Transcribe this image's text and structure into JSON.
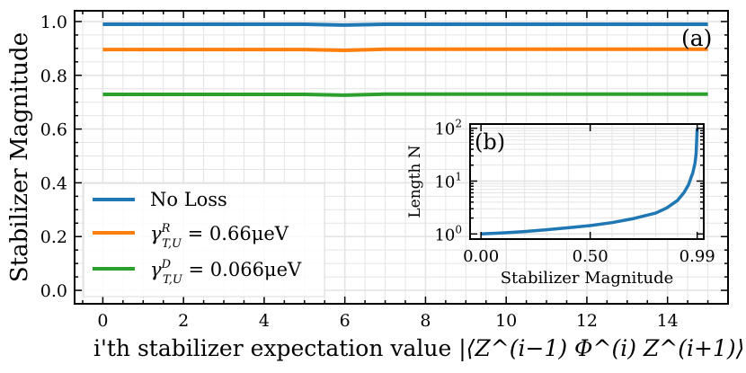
{
  "chart_data": [
    {
      "type": "line",
      "title": "",
      "panel_label": "(a)",
      "xlabel_prefix": "i'th stabilizer expectation value ",
      "xlabel_math": "|⟨Z^(i−1) Φ^(i) Z^(i+1)⟩|",
      "ylabel": "Stabilizer Magnitude",
      "xlim": [
        -0.7,
        15.5
      ],
      "ylim": [
        -0.05,
        1.04
      ],
      "xticks": [
        0,
        2,
        4,
        6,
        8,
        10,
        12,
        14
      ],
      "xtick_labels": [
        "0",
        "2",
        "4",
        "6",
        "8",
        "10",
        "12",
        "14"
      ],
      "yticks": [
        0.0,
        0.2,
        0.4,
        0.6,
        0.8,
        1.0
      ],
      "ytick_labels": [
        "0.0",
        "0.2",
        "0.4",
        "0.6",
        "0.8",
        "1.0"
      ],
      "grid": true,
      "legend_position": "lower-left",
      "series": [
        {
          "name": "No Loss",
          "color": "#1f77b4",
          "x": [
            0,
            1,
            2,
            3,
            4,
            5,
            6,
            7,
            8,
            9,
            10,
            11,
            12,
            13,
            14,
            15
          ],
          "y": [
            0.99,
            0.99,
            0.99,
            0.99,
            0.99,
            0.99,
            0.987,
            0.99,
            0.99,
            0.99,
            0.99,
            0.99,
            0.99,
            0.99,
            0.99,
            0.99
          ]
        },
        {
          "name": "γ^R_{T,U} = 0.66μeV",
          "legend_main": "γ",
          "legend_sup": "R",
          "legend_sub": "T,U",
          "legend_rest": " = 0.66μeV",
          "color": "#ff7f0e",
          "x": [
            0,
            1,
            2,
            3,
            4,
            5,
            6,
            7,
            8,
            9,
            10,
            11,
            12,
            13,
            14,
            15
          ],
          "y": [
            0.896,
            0.896,
            0.896,
            0.896,
            0.896,
            0.896,
            0.893,
            0.897,
            0.897,
            0.897,
            0.897,
            0.897,
            0.897,
            0.897,
            0.897,
            0.897
          ]
        },
        {
          "name": "γ^D_{T,U} = 0.066μeV",
          "legend_main": "γ",
          "legend_sup": "D",
          "legend_sub": "T,U",
          "legend_rest": " = 0.066μeV",
          "color": "#2ca02c",
          "x": [
            0,
            1,
            2,
            3,
            4,
            5,
            6,
            7,
            8,
            9,
            10,
            11,
            12,
            13,
            14,
            15
          ],
          "y": [
            0.729,
            0.729,
            0.729,
            0.729,
            0.729,
            0.729,
            0.726,
            0.73,
            0.73,
            0.73,
            0.73,
            0.73,
            0.73,
            0.73,
            0.73,
            0.73
          ]
        }
      ]
    },
    {
      "type": "line",
      "panel_label": "(b)",
      "xlabel": "Stabilizer Magnitude",
      "ylabel": "Length N",
      "yscale": "log",
      "xlim": [
        -0.05,
        1.02
      ],
      "ylim": [
        0.8,
        120
      ],
      "xticks": [
        0.0,
        0.5,
        0.99
      ],
      "xtick_labels": [
        "0.00",
        "0.50",
        "0.99"
      ],
      "yticks": [
        1,
        10,
        100
      ],
      "ytick_base": "10",
      "ytick_exponents": [
        "0",
        "1",
        "2"
      ],
      "grid": true,
      "series": [
        {
          "name": "inset",
          "color": "#1f77b4",
          "x": [
            0.0,
            0.1,
            0.2,
            0.3,
            0.4,
            0.5,
            0.6,
            0.7,
            0.8,
            0.85,
            0.9,
            0.93,
            0.95,
            0.97,
            0.98,
            0.985,
            0.99
          ],
          "y": [
            1.0,
            1.05,
            1.11,
            1.2,
            1.31,
            1.44,
            1.64,
            1.96,
            2.48,
            3.1,
            4.3,
            6.1,
            8.5,
            14.5,
            22,
            33,
            100
          ]
        }
      ]
    }
  ]
}
